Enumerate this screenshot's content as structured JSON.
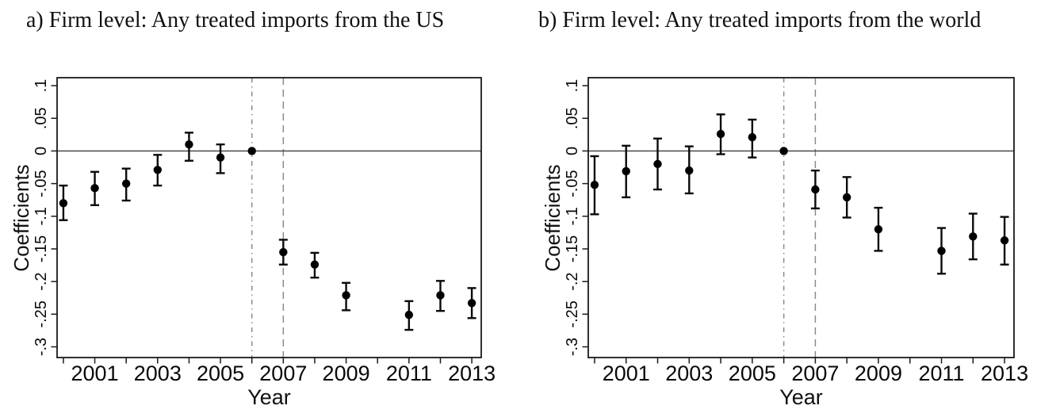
{
  "figure": {
    "background": "#ffffff",
    "description_visible": "Two side-by-side coefficient plots over years with 95% confidence interval whiskers, a solid horizontal line at 0, and gray vertical reference lines at 2006 (dash-dot) and 2007 (dashed). No coefficient is plotted for 2010 in either panel."
  },
  "style": {
    "axis_color": "#1a1a1a",
    "zero_line_color": "#3d3d3d",
    "vline_color": "#8a8a8a",
    "point_color": "#000000",
    "errorbar_color": "#0a0a0a",
    "text_color": "#0a0a0a"
  },
  "chart_data": [
    {
      "type": "scatter",
      "subtype": "event-study coefficient plot with CI error bars",
      "title": "a) Firm level: Any treated imports from the US",
      "xlabel": "Year",
      "ylabel": "Coefficients",
      "xlim": [
        1999.8,
        2013.3
      ],
      "ylim": [
        -0.3164,
        0.1122
      ],
      "grid": false,
      "legend": "none",
      "hline": 0,
      "reference_year": 2006,
      "gap_years": [
        2010
      ],
      "vlines": [
        {
          "x": 2006,
          "style": "dash-dot",
          "color": "#8a8a8a"
        },
        {
          "x": 2007,
          "style": "dashed",
          "color": "#8a8a8a"
        }
      ],
      "x_axis": {
        "label": "Year",
        "tick_years": [
          2000,
          2001,
          2002,
          2003,
          2004,
          2005,
          2006,
          2007,
          2008,
          2009,
          2010,
          2011,
          2012,
          2013
        ],
        "labeled_ticks": [
          {
            "year": 2001,
            "label": "2001"
          },
          {
            "year": 2003,
            "label": "2003"
          },
          {
            "year": 2005,
            "label": "2005"
          },
          {
            "year": 2007,
            "label": "2007"
          },
          {
            "year": 2009,
            "label": "2009"
          },
          {
            "year": 2011,
            "label": "2011"
          },
          {
            "year": 2013,
            "label": "2013"
          }
        ]
      },
      "y_axis": {
        "label": "Coefficients",
        "ticks": [
          {
            "value": 0.1,
            "label": ".1"
          },
          {
            "value": 0.05,
            "label": ".05"
          },
          {
            "value": 0,
            "label": "0"
          },
          {
            "value": -0.05,
            "label": "-.05"
          },
          {
            "value": -0.1,
            "label": "-.1"
          },
          {
            "value": -0.15,
            "label": "-.15"
          },
          {
            "value": -0.2,
            "label": "-.2"
          },
          {
            "value": -0.25,
            "label": "-.25"
          },
          {
            "value": -0.3,
            "label": "-.3"
          }
        ]
      },
      "points": [
        {
          "year": 2000,
          "coef": -0.08,
          "ci_low": -0.106,
          "ci_high": -0.053
        },
        {
          "year": 2001,
          "coef": -0.057,
          "ci_low": -0.083,
          "ci_high": -0.032
        },
        {
          "year": 2002,
          "coef": -0.05,
          "ci_low": -0.076,
          "ci_high": -0.027
        },
        {
          "year": 2003,
          "coef": -0.029,
          "ci_low": -0.053,
          "ci_high": -0.006
        },
        {
          "year": 2004,
          "coef": 0.01,
          "ci_low": -0.015,
          "ci_high": 0.028
        },
        {
          "year": 2005,
          "coef": -0.01,
          "ci_low": -0.034,
          "ci_high": 0.01
        },
        {
          "year": 2006,
          "coef": 0.0,
          "ci_low": null,
          "ci_high": null
        },
        {
          "year": 2007,
          "coef": -0.155,
          "ci_low": -0.174,
          "ci_high": -0.136
        },
        {
          "year": 2008,
          "coef": -0.174,
          "ci_low": -0.194,
          "ci_high": -0.156
        },
        {
          "year": 2009,
          "coef": -0.221,
          "ci_low": -0.244,
          "ci_high": -0.202
        },
        {
          "year": 2011,
          "coef": -0.251,
          "ci_low": -0.274,
          "ci_high": -0.23
        },
        {
          "year": 2012,
          "coef": -0.221,
          "ci_low": -0.245,
          "ci_high": -0.199
        },
        {
          "year": 2013,
          "coef": -0.233,
          "ci_low": -0.256,
          "ci_high": -0.21
        }
      ]
    },
    {
      "type": "scatter",
      "subtype": "event-study coefficient plot with CI error bars",
      "title": "b) Firm level: Any treated imports from the world",
      "xlabel": "Year",
      "ylabel": "Coefficients",
      "xlim": [
        1999.8,
        2013.3
      ],
      "ylim": [
        -0.3164,
        0.1122
      ],
      "grid": false,
      "legend": "none",
      "hline": 0,
      "reference_year": 2006,
      "gap_years": [
        2010
      ],
      "vlines": [
        {
          "x": 2006,
          "style": "dash-dot",
          "color": "#8a8a8a"
        },
        {
          "x": 2007,
          "style": "dashed",
          "color": "#8a8a8a"
        }
      ],
      "x_axis": {
        "label": "Year",
        "tick_years": [
          2000,
          2001,
          2002,
          2003,
          2004,
          2005,
          2006,
          2007,
          2008,
          2009,
          2010,
          2011,
          2012,
          2013
        ],
        "labeled_ticks": [
          {
            "year": 2001,
            "label": "2001"
          },
          {
            "year": 2003,
            "label": "2003"
          },
          {
            "year": 2005,
            "label": "2005"
          },
          {
            "year": 2007,
            "label": "2007"
          },
          {
            "year": 2009,
            "label": "2009"
          },
          {
            "year": 2011,
            "label": "2011"
          },
          {
            "year": 2013,
            "label": "2013"
          }
        ]
      },
      "y_axis": {
        "label": "Coefficients",
        "ticks": [
          {
            "value": 0.1,
            "label": ".1"
          },
          {
            "value": 0.05,
            "label": ".05"
          },
          {
            "value": 0,
            "label": "0"
          },
          {
            "value": -0.05,
            "label": "-.05"
          },
          {
            "value": -0.1,
            "label": "-.1"
          },
          {
            "value": -0.15,
            "label": "-.15"
          },
          {
            "value": -0.2,
            "label": "-.2"
          },
          {
            "value": -0.25,
            "label": "-.25"
          },
          {
            "value": -0.3,
            "label": "-.3"
          }
        ]
      },
      "points": [
        {
          "year": 2000,
          "coef": -0.052,
          "ci_low": -0.097,
          "ci_high": -0.008
        },
        {
          "year": 2001,
          "coef": -0.031,
          "ci_low": -0.071,
          "ci_high": 0.008
        },
        {
          "year": 2002,
          "coef": -0.02,
          "ci_low": -0.059,
          "ci_high": 0.019
        },
        {
          "year": 2003,
          "coef": -0.03,
          "ci_low": -0.065,
          "ci_high": 0.007
        },
        {
          "year": 2004,
          "coef": 0.026,
          "ci_low": -0.005,
          "ci_high": 0.056
        },
        {
          "year": 2005,
          "coef": 0.021,
          "ci_low": -0.01,
          "ci_high": 0.048
        },
        {
          "year": 2006,
          "coef": 0.0,
          "ci_low": null,
          "ci_high": null
        },
        {
          "year": 2007,
          "coef": -0.059,
          "ci_low": -0.088,
          "ci_high": -0.03
        },
        {
          "year": 2008,
          "coef": -0.071,
          "ci_low": -0.102,
          "ci_high": -0.04
        },
        {
          "year": 2009,
          "coef": -0.12,
          "ci_low": -0.153,
          "ci_high": -0.087
        },
        {
          "year": 2011,
          "coef": -0.153,
          "ci_low": -0.188,
          "ci_high": -0.118
        },
        {
          "year": 2012,
          "coef": -0.131,
          "ci_low": -0.166,
          "ci_high": -0.096
        },
        {
          "year": 2013,
          "coef": -0.137,
          "ci_low": -0.174,
          "ci_high": -0.101
        }
      ]
    }
  ]
}
